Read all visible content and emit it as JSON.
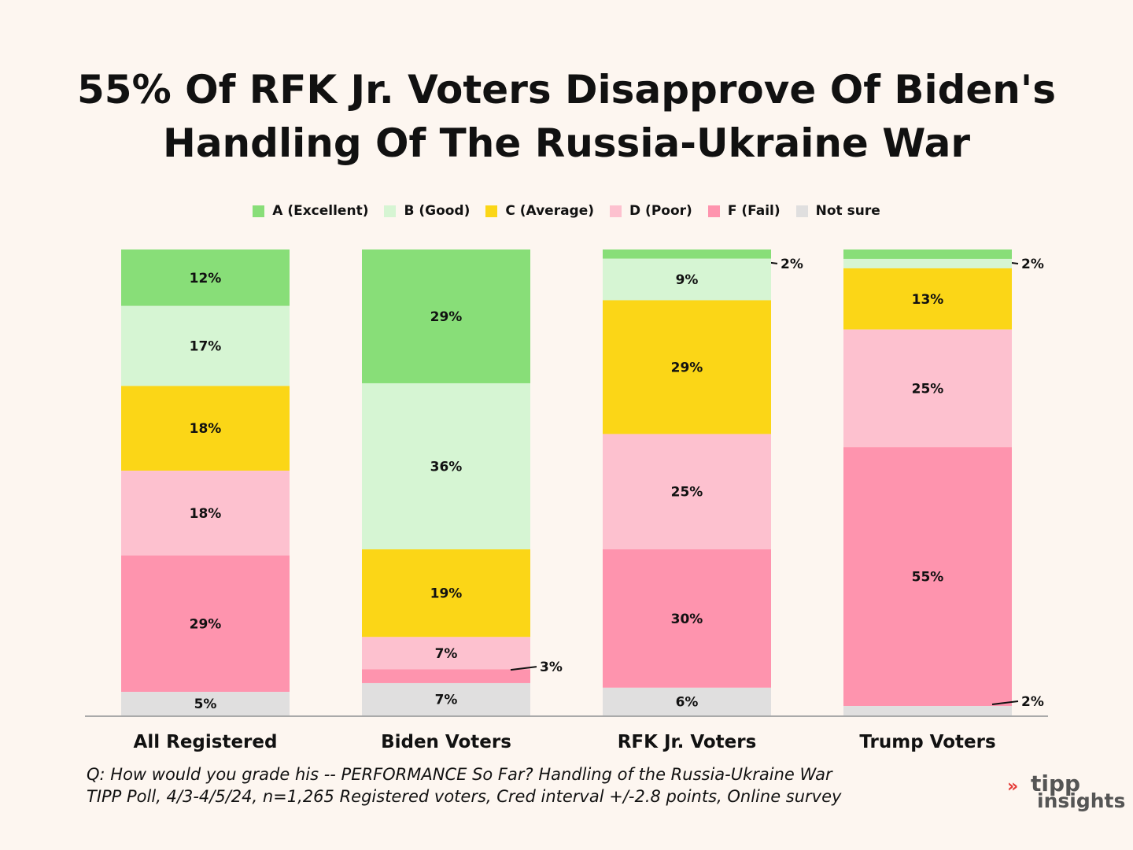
{
  "title_line1": "55% Of RFK Jr. Voters Disapprove Of Biden's",
  "title_line2": "Handling Of The Russia-Ukraine War",
  "footer_line1": "Q:  How would you grade his -- PERFORMANCE So Far?  Handling of the Russia-Ukraine War",
  "footer_line2": "TIPP Poll, 4/3-4/5/24, n=1,265 Registered voters, Cred interval +/-2.8 points, Online survey",
  "logo": {
    "mark": "»",
    "line1": "tipp",
    "line2": "insights"
  },
  "colors": {
    "A (Excellent)": "#88de78",
    "B (Good)": "#d6f5d3",
    "C (Average)": "#fbd617",
    "D (Poor)": "#fdc1cf",
    "F (Fail)": "#fe94ae",
    "Not sure": "#e0dfdf"
  },
  "chart_data": {
    "type": "bar",
    "stacked": true,
    "normalized": true,
    "title": "55% Of RFK Jr. Voters Disapprove Of Biden's Handling Of The Russia-Ukraine War",
    "categories": [
      "All Registered",
      "Biden Voters",
      "RFK Jr. Voters",
      "Trump Voters"
    ],
    "legend_position": "top-center",
    "series": [
      {
        "name": "A (Excellent)",
        "values": [
          12,
          29,
          2,
          2
        ]
      },
      {
        "name": "B (Good)",
        "values": [
          17,
          36,
          9,
          2
        ]
      },
      {
        "name": "C (Average)",
        "values": [
          18,
          19,
          29,
          13
        ]
      },
      {
        "name": "D (Poor)",
        "values": [
          18,
          7,
          25,
          25
        ]
      },
      {
        "name": "F (Fail)",
        "values": [
          29,
          3,
          30,
          55
        ]
      },
      {
        "name": "Not sure",
        "values": [
          5,
          7,
          6,
          2
        ]
      }
    ],
    "labels": [
      [
        "12%",
        "17%",
        "18%",
        "18%",
        "29%",
        "5%"
      ],
      [
        "29%",
        "36%",
        "19%",
        "7%",
        "3%",
        "7%"
      ],
      [
        "2%",
        "9%",
        "29%",
        "25%",
        "30%",
        "6%"
      ],
      [
        "2%",
        "",
        "13%",
        "25%",
        "55%",
        "2%"
      ]
    ]
  }
}
